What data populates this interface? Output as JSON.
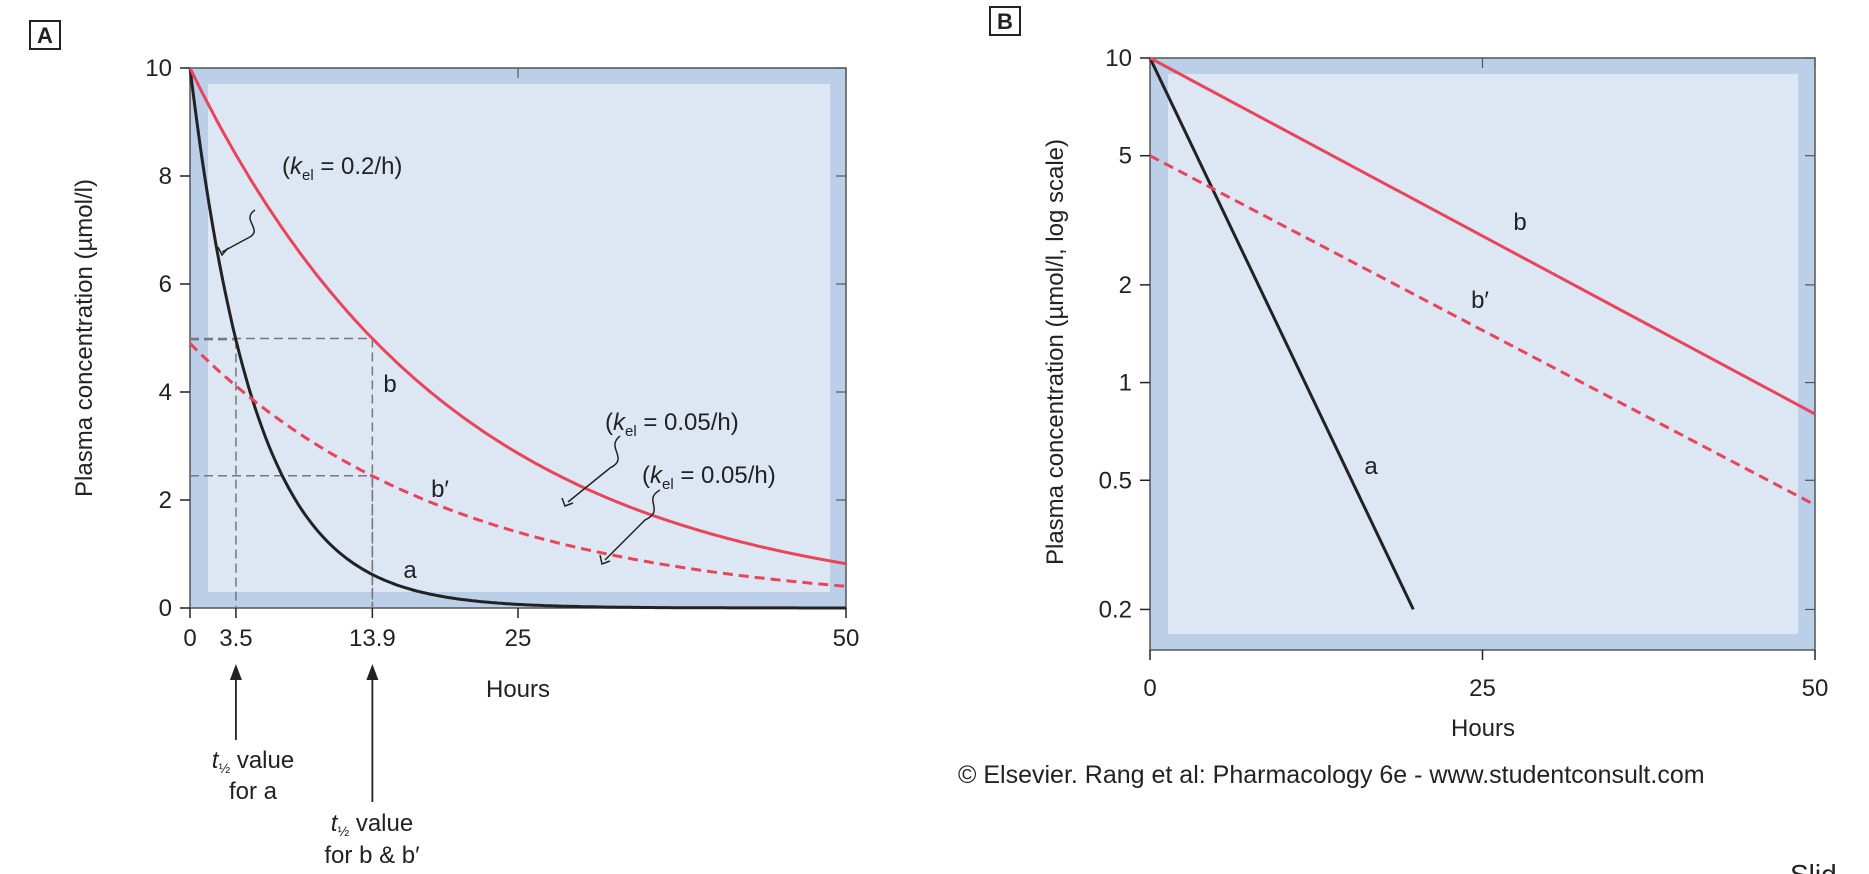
{
  "chart_data": [
    {
      "panel": "A",
      "type": "line",
      "xlabel": "Hours",
      "ylabel": "Plasma concentration (µmol/l)",
      "xlim": [
        0,
        50
      ],
      "ylim": [
        0,
        10
      ],
      "xticks": [
        0,
        3.5,
        13.9,
        25,
        50
      ],
      "xtick_labels": [
        "0",
        "3.5",
        "13.9",
        "25",
        "50"
      ],
      "yticks": [
        0,
        2,
        4,
        6,
        8,
        10
      ],
      "series": [
        {
          "name": "a",
          "style": "solid",
          "color": "#222222",
          "c0": 10,
          "k": 0.2,
          "x": [
            0,
            2,
            3.5,
            5,
            7,
            10,
            13.9,
            20,
            25,
            50
          ],
          "y": [
            10,
            6.7,
            4.97,
            3.68,
            2.47,
            1.35,
            0.62,
            0.18,
            0.07,
            0.0
          ]
        },
        {
          "name": "b",
          "style": "solid",
          "color": "#e8455a",
          "c0": 10,
          "k": 0.05,
          "x": [
            0,
            5,
            10,
            13.9,
            20,
            25,
            30,
            40,
            50
          ],
          "y": [
            10,
            7.79,
            6.07,
            4.99,
            3.68,
            2.87,
            2.23,
            1.35,
            0.82
          ]
        },
        {
          "name": "b′",
          "style": "dashed",
          "color": "#e8455a",
          "c0": 4.9,
          "k": 0.05,
          "x": [
            0,
            5,
            10,
            13.9,
            20,
            25,
            30,
            40,
            50
          ],
          "y": [
            4.9,
            3.82,
            2.97,
            2.45,
            1.8,
            1.41,
            1.09,
            0.66,
            0.4
          ]
        }
      ],
      "annotations": {
        "kel_a": {
          "pre": "(",
          "k": "k",
          "sub": "el",
          "post": " = 0.2/h)"
        },
        "kel_b": {
          "pre": "(",
          "k": "k",
          "sub": "el",
          "post": " = 0.05/h)"
        },
        "kel_b2": {
          "pre": "(",
          "k": "k",
          "sub": "el",
          "post": " = 0.05/h)"
        },
        "half_a": {
          "t": "t",
          "sub": "½",
          "line1": " value",
          "line2": "for a"
        },
        "half_b": {
          "t": "t",
          "sub": "½",
          "line1": " value",
          "line2": "for b & b′"
        }
      },
      "half_life_markers": [
        {
          "x": 3.5,
          "y": 4.97
        },
        {
          "x": 13.9,
          "y": 4.99
        },
        {
          "x": 13.9,
          "y": 2.45
        }
      ]
    },
    {
      "panel": "B",
      "type": "line",
      "scale_y": "log",
      "xlabel": "Hours",
      "ylabel": "Plasma concentration (µmol/l, log scale)",
      "xlim": [
        0,
        50
      ],
      "ylim": [
        0.15,
        10
      ],
      "xticks": [
        0,
        25,
        50
      ],
      "yticks": [
        0.2,
        0.5,
        1,
        2,
        5,
        10
      ],
      "ytick_labels": [
        "0.2",
        "0.5",
        "1",
        "2",
        "5",
        "10"
      ],
      "series": [
        {
          "name": "a",
          "style": "solid",
          "color": "#222222",
          "x": [
            0,
            19.8
          ],
          "y": [
            10,
            0.2
          ]
        },
        {
          "name": "b",
          "style": "solid",
          "color": "#e8455a",
          "x": [
            0,
            50
          ],
          "y": [
            10,
            0.8
          ]
        },
        {
          "name": "b′",
          "style": "dashed",
          "color": "#e8455a",
          "x": [
            0,
            50
          ],
          "y": [
            5,
            0.42
          ]
        }
      ]
    }
  ],
  "panel_labels": [
    "A",
    "B"
  ],
  "copyright": "© Elsevier. Rang et al: Pharmacology 6e - www.studentconsult.com",
  "corner_text": "Slid",
  "colors": {
    "plot_bg": "#dde6f3",
    "plot_border": "#bccfe9",
    "red": "#e8455a",
    "black": "#222222"
  }
}
